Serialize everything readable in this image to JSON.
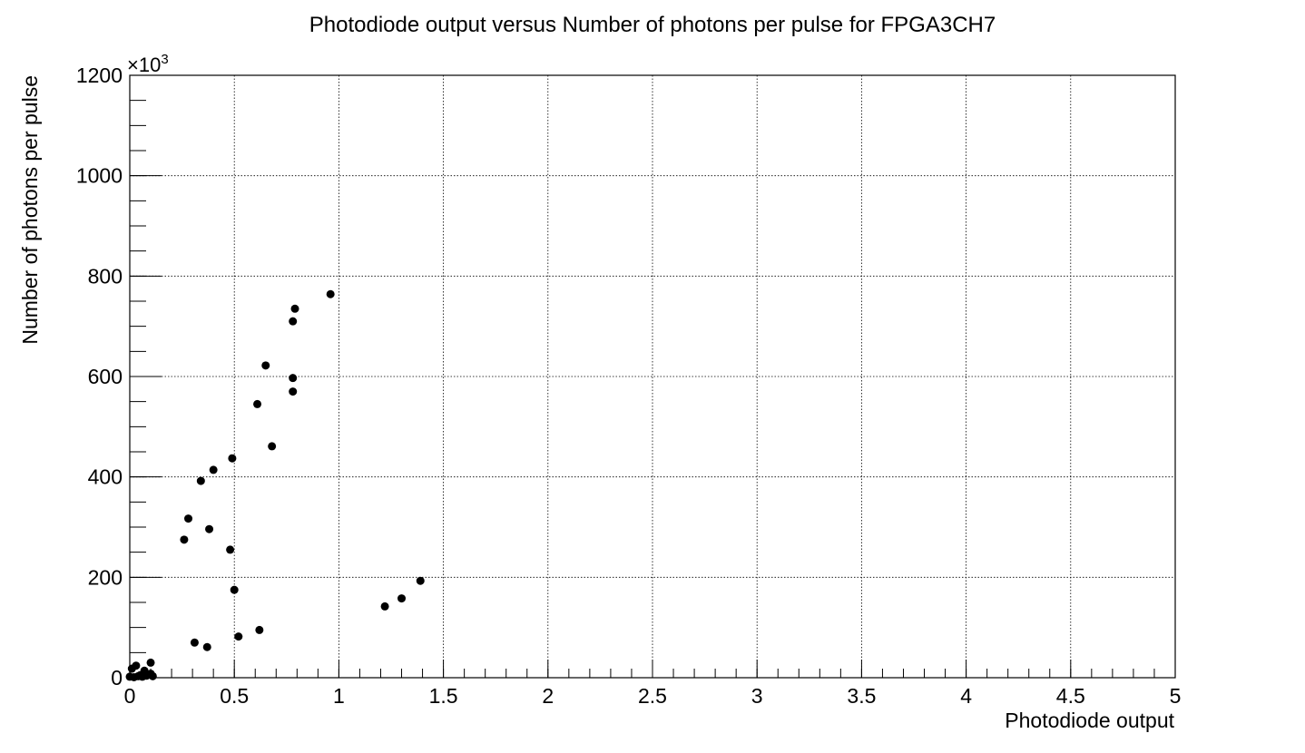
{
  "chart_data": {
    "type": "scatter",
    "title": "Photodiode output versus Number of photons per pulse for FPGA3CH7",
    "xlabel": "Photodiode output",
    "ylabel": "Number of photons per pulse",
    "y_multiplier_label": "×10",
    "y_multiplier_exponent": "3",
    "xlim": [
      0,
      5
    ],
    "ylim": [
      0,
      1200
    ],
    "x_ticks": [
      "0",
      "0.5",
      "1",
      "1.5",
      "2",
      "2.5",
      "3",
      "3.5",
      "4",
      "4.5",
      "5"
    ],
    "y_ticks": [
      "0",
      "200",
      "400",
      "600",
      "800",
      "1000",
      "1200"
    ],
    "grid": true,
    "series": [
      {
        "points": [
          {
            "x": 0.0,
            "y": 2
          },
          {
            "x": 0.01,
            "y": 18
          },
          {
            "x": 0.02,
            "y": 1
          },
          {
            "x": 0.03,
            "y": 24
          },
          {
            "x": 0.04,
            "y": 3
          },
          {
            "x": 0.05,
            "y": 5
          },
          {
            "x": 0.06,
            "y": 2
          },
          {
            "x": 0.07,
            "y": 14
          },
          {
            "x": 0.08,
            "y": 4
          },
          {
            "x": 0.1,
            "y": 8
          },
          {
            "x": 0.1,
            "y": 30
          },
          {
            "x": 0.11,
            "y": 3
          },
          {
            "x": 0.26,
            "y": 275
          },
          {
            "x": 0.28,
            "y": 317
          },
          {
            "x": 0.31,
            "y": 70
          },
          {
            "x": 0.34,
            "y": 392
          },
          {
            "x": 0.37,
            "y": 61
          },
          {
            "x": 0.38,
            "y": 296
          },
          {
            "x": 0.4,
            "y": 414
          },
          {
            "x": 0.48,
            "y": 255
          },
          {
            "x": 0.49,
            "y": 437
          },
          {
            "x": 0.5,
            "y": 175
          },
          {
            "x": 0.52,
            "y": 82
          },
          {
            "x": 0.61,
            "y": 545
          },
          {
            "x": 0.62,
            "y": 95
          },
          {
            "x": 0.65,
            "y": 622
          },
          {
            "x": 0.68,
            "y": 461
          },
          {
            "x": 0.78,
            "y": 570
          },
          {
            "x": 0.78,
            "y": 597
          },
          {
            "x": 0.78,
            "y": 710
          },
          {
            "x": 0.79,
            "y": 735
          },
          {
            "x": 0.96,
            "y": 764
          },
          {
            "x": 1.22,
            "y": 142
          },
          {
            "x": 1.3,
            "y": 158
          },
          {
            "x": 1.39,
            "y": 193
          }
        ]
      }
    ],
    "marker_color": "#000000"
  }
}
